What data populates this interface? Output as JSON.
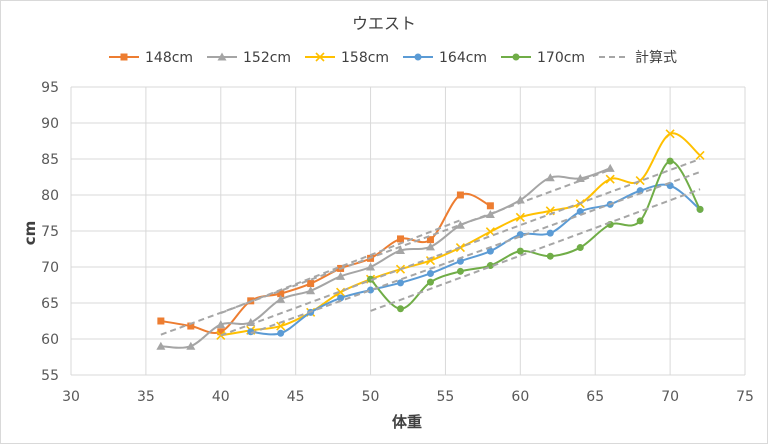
{
  "chart_data": {
    "type": "line",
    "title": "ウエスト",
    "xlabel": "体重",
    "ylabel": "cm",
    "xlim": [
      30,
      75
    ],
    "ylim": [
      55,
      95
    ],
    "xticks": [
      30,
      35,
      40,
      45,
      50,
      55,
      60,
      65,
      70,
      75
    ],
    "yticks": [
      55,
      60,
      65,
      70,
      75,
      80,
      85,
      90,
      95
    ],
    "grid": true,
    "legend": "top",
    "series": [
      {
        "name": "148cm",
        "color": "#ED7D31",
        "marker": "square",
        "points": [
          [
            36,
            62.5
          ],
          [
            38,
            61.8
          ],
          [
            40,
            61.0
          ],
          [
            42,
            65.3
          ],
          [
            44,
            66.3
          ],
          [
            46,
            67.7
          ],
          [
            48,
            69.8
          ],
          [
            50,
            71.2
          ],
          [
            52,
            73.9
          ],
          [
            54,
            73.8
          ],
          [
            56,
            80.0
          ],
          [
            58,
            78.5
          ]
        ]
      },
      {
        "name": "152cm",
        "color": "#A5A5A5",
        "marker": "triangle",
        "points": [
          [
            36,
            59.0
          ],
          [
            38,
            59.0
          ],
          [
            40,
            62.0
          ],
          [
            42,
            62.3
          ],
          [
            44,
            65.5
          ],
          [
            46,
            66.7
          ],
          [
            48,
            68.7
          ],
          [
            50,
            70.0
          ],
          [
            52,
            72.3
          ],
          [
            54,
            72.8
          ],
          [
            56,
            75.8
          ],
          [
            58,
            77.3
          ],
          [
            60,
            79.3
          ],
          [
            62,
            82.4
          ],
          [
            64,
            82.3
          ],
          [
            66,
            83.7
          ]
        ]
      },
      {
        "name": "158cm",
        "color": "#FFC000",
        "marker": "x",
        "points": [
          [
            40,
            60.5
          ],
          [
            42,
            61.2
          ],
          [
            44,
            61.8
          ],
          [
            46,
            63.7
          ],
          [
            48,
            66.5
          ],
          [
            50,
            68.3
          ],
          [
            52,
            69.7
          ],
          [
            54,
            70.9
          ],
          [
            56,
            72.7
          ],
          [
            58,
            74.9
          ],
          [
            60,
            76.9
          ],
          [
            62,
            77.8
          ],
          [
            64,
            78.8
          ],
          [
            66,
            82.2
          ],
          [
            68,
            82.0
          ],
          [
            70,
            88.5
          ],
          [
            72,
            85.5
          ]
        ]
      },
      {
        "name": "164cm",
        "color": "#5B9BD5",
        "marker": "circle",
        "points": [
          [
            42,
            61.0
          ],
          [
            44,
            60.8
          ],
          [
            46,
            63.7
          ],
          [
            48,
            65.7
          ],
          [
            50,
            66.8
          ],
          [
            52,
            67.8
          ],
          [
            54,
            69.1
          ],
          [
            56,
            70.8
          ],
          [
            58,
            72.2
          ],
          [
            60,
            74.5
          ],
          [
            62,
            74.7
          ],
          [
            64,
            77.7
          ],
          [
            66,
            78.7
          ],
          [
            68,
            80.6
          ],
          [
            70,
            81.3
          ],
          [
            72,
            78.0
          ]
        ]
      },
      {
        "name": "170cm",
        "color": "#70AD47",
        "marker": "circle",
        "points": [
          [
            50,
            68.3
          ],
          [
            52,
            64.2
          ],
          [
            54,
            67.9
          ],
          [
            56,
            69.4
          ],
          [
            58,
            70.2
          ],
          [
            60,
            72.2
          ],
          [
            62,
            71.5
          ],
          [
            64,
            72.7
          ],
          [
            66,
            75.9
          ],
          [
            68,
            76.4
          ],
          [
            70,
            84.7
          ],
          [
            72,
            78.0
          ]
        ]
      },
      {
        "name": "計算式",
        "color": "#A6A6A6",
        "dashed": true,
        "lines": [
          [
            [
              40,
              63.6
            ],
            [
              56,
              76.5
            ]
          ],
          [
            [
              36,
              60.6
            ],
            [
              66,
              83.5
            ]
          ],
          [
            [
              40,
              60.5
            ],
            [
              72,
              85.0
            ]
          ],
          [
            [
              42,
              60.8
            ],
            [
              72,
              83.2
            ]
          ],
          [
            [
              50,
              63.9
            ],
            [
              72,
              80.8
            ]
          ]
        ]
      }
    ]
  }
}
